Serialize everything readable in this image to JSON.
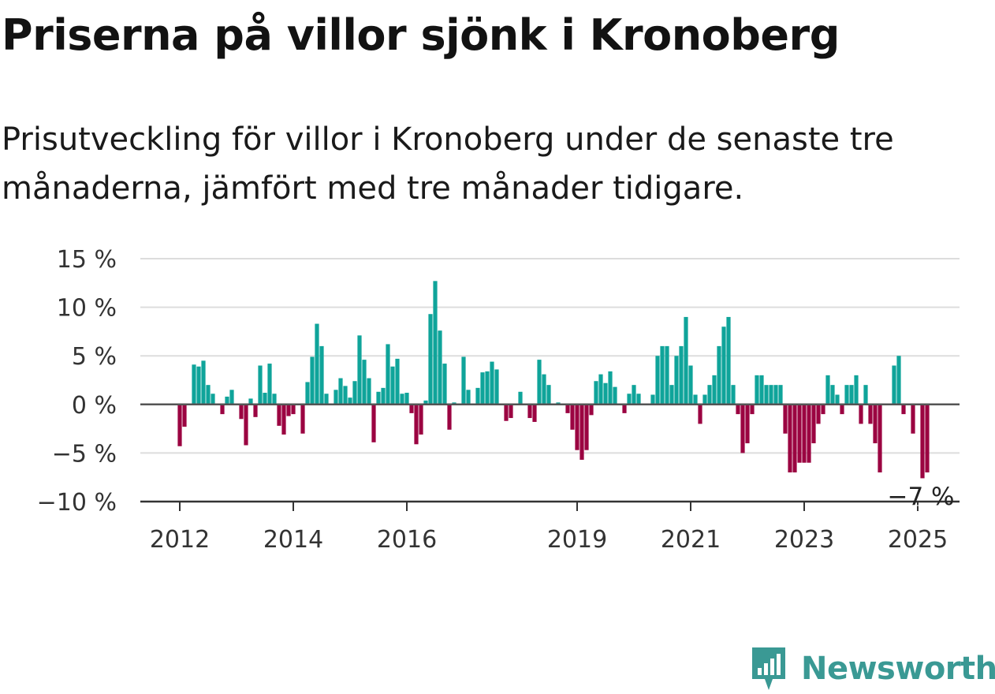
{
  "header": {
    "title": "Priserna på villor sjönk i Kronoberg",
    "subtitle": "Prisutveckling för villor i Kronoberg under de senaste tre månaderna, jämfört med tre månader tidigare."
  },
  "brand": {
    "name": "Newsworthy",
    "icon": "newsworthy-logo-icon",
    "color": "#3a9994"
  },
  "colors": {
    "positive": "#0fa49a",
    "negative": "#9b0441",
    "grid": "#dddddd",
    "zero": "#555555"
  },
  "chart_data": {
    "type": "bar",
    "title": "Priserna på villor sjönk i Kronoberg",
    "xlabel": "",
    "ylabel": "",
    "ylim": [
      -10,
      15
    ],
    "y_ticks": [
      {
        "value": 15,
        "label": "15 %"
      },
      {
        "value": 10,
        "label": "10 %"
      },
      {
        "value": 5,
        "label": "5 %"
      },
      {
        "value": 0,
        "label": "0 %"
      },
      {
        "value": -5,
        "label": "−5 %"
      },
      {
        "value": -10,
        "label": "−10 %"
      }
    ],
    "x_start": "2012-01",
    "x_ticks": [
      {
        "date": "2012-01",
        "label": "2012"
      },
      {
        "date": "2014-01",
        "label": "2014"
      },
      {
        "date": "2016-01",
        "label": "2016"
      },
      {
        "date": "2019-01",
        "label": "2019"
      },
      {
        "date": "2021-01",
        "label": "2021"
      },
      {
        "date": "2023-01",
        "label": "2023"
      },
      {
        "date": "2025-01",
        "label": "2025"
      }
    ],
    "annotation": {
      "label": "−7 %",
      "date": "2025-01",
      "value": -7
    },
    "grid": true,
    "legend": "none",
    "values": [
      -4.3,
      -2.3,
      0,
      4.1,
      3.9,
      4.5,
      2,
      1.1,
      0,
      -1,
      0.8,
      1.5,
      0,
      -1.5,
      -4.2,
      0.6,
      -1.3,
      4,
      1.2,
      4.2,
      1.1,
      -2.2,
      -3.1,
      -1.2,
      -1,
      0,
      -3,
      2.3,
      4.9,
      8.3,
      6,
      1.1,
      0,
      1.5,
      2.7,
      1.9,
      0.7,
      2.4,
      7.1,
      4.6,
      2.7,
      -3.9,
      1.3,
      1.7,
      6.2,
      3.9,
      4.7,
      1.1,
      1.2,
      -0.9,
      -4.1,
      -3.1,
      0.4,
      9.3,
      12.7,
      7.6,
      4.2,
      -2.6,
      0.2,
      0,
      4.9,
      1.5,
      0,
      1.7,
      3.3,
      3.4,
      4.4,
      3.6,
      0,
      -1.7,
      -1.4,
      0,
      1.3,
      0,
      -1.4,
      -1.8,
      4.6,
      3.1,
      2,
      0,
      0.2,
      0,
      -0.9,
      -2.6,
      -4.7,
      -5.7,
      -4.7,
      -1.1,
      2.4,
      3.1,
      2.2,
      3.4,
      1.8,
      0,
      -0.9,
      1.1,
      2,
      1.1,
      0,
      0,
      1,
      5,
      6,
      6,
      2,
      5,
      6,
      9,
      4,
      1,
      -2,
      1,
      2,
      3,
      6,
      8,
      9,
      2,
      -1,
      -5,
      -4,
      -1,
      3,
      3,
      2,
      2,
      2,
      2,
      -3,
      -7,
      -7,
      -6,
      -6,
      -6,
      -4,
      -2,
      -1,
      3,
      2,
      1,
      -1,
      2,
      2,
      3,
      -2,
      2,
      -2,
      -4,
      -7,
      0,
      0,
      4,
      5,
      -1,
      0,
      -3,
      0,
      -7.6,
      -7
    ]
  }
}
